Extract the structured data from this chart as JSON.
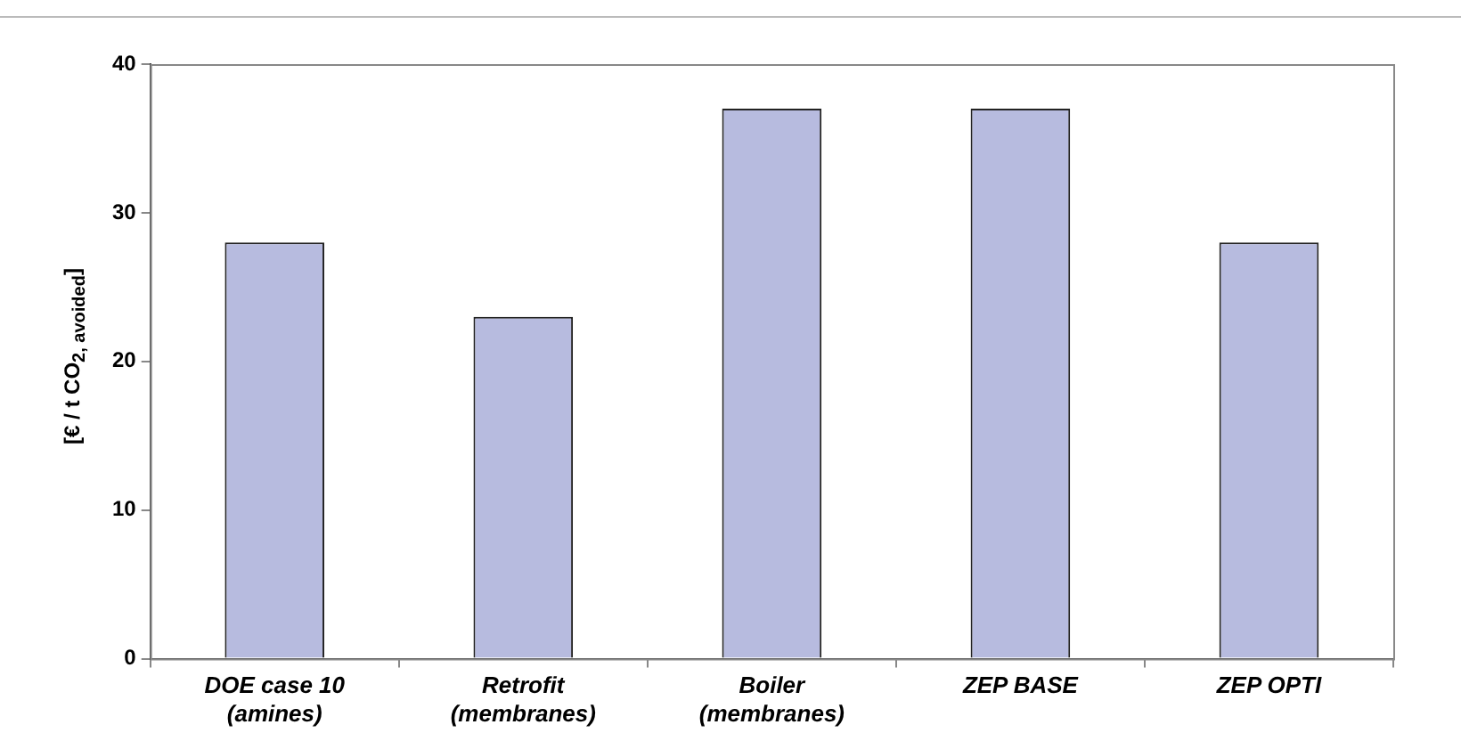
{
  "chart_data": {
    "type": "bar",
    "ylabel": "[€ / t CO$_{2, avoided}$]",
    "categories": [
      "DOE case 10\n(amines)",
      "Retrofit\n(membranes)",
      "Boiler\n(membranes)",
      "ZEP BASE",
      "ZEP OPTI"
    ],
    "values": [
      28,
      23,
      37,
      37,
      28
    ],
    "color": "#b7bbdf",
    "ylim": [
      0,
      40
    ],
    "yticks": [
      0,
      10,
      20,
      30,
      40
    ],
    "grid": false,
    "legend": false
  }
}
